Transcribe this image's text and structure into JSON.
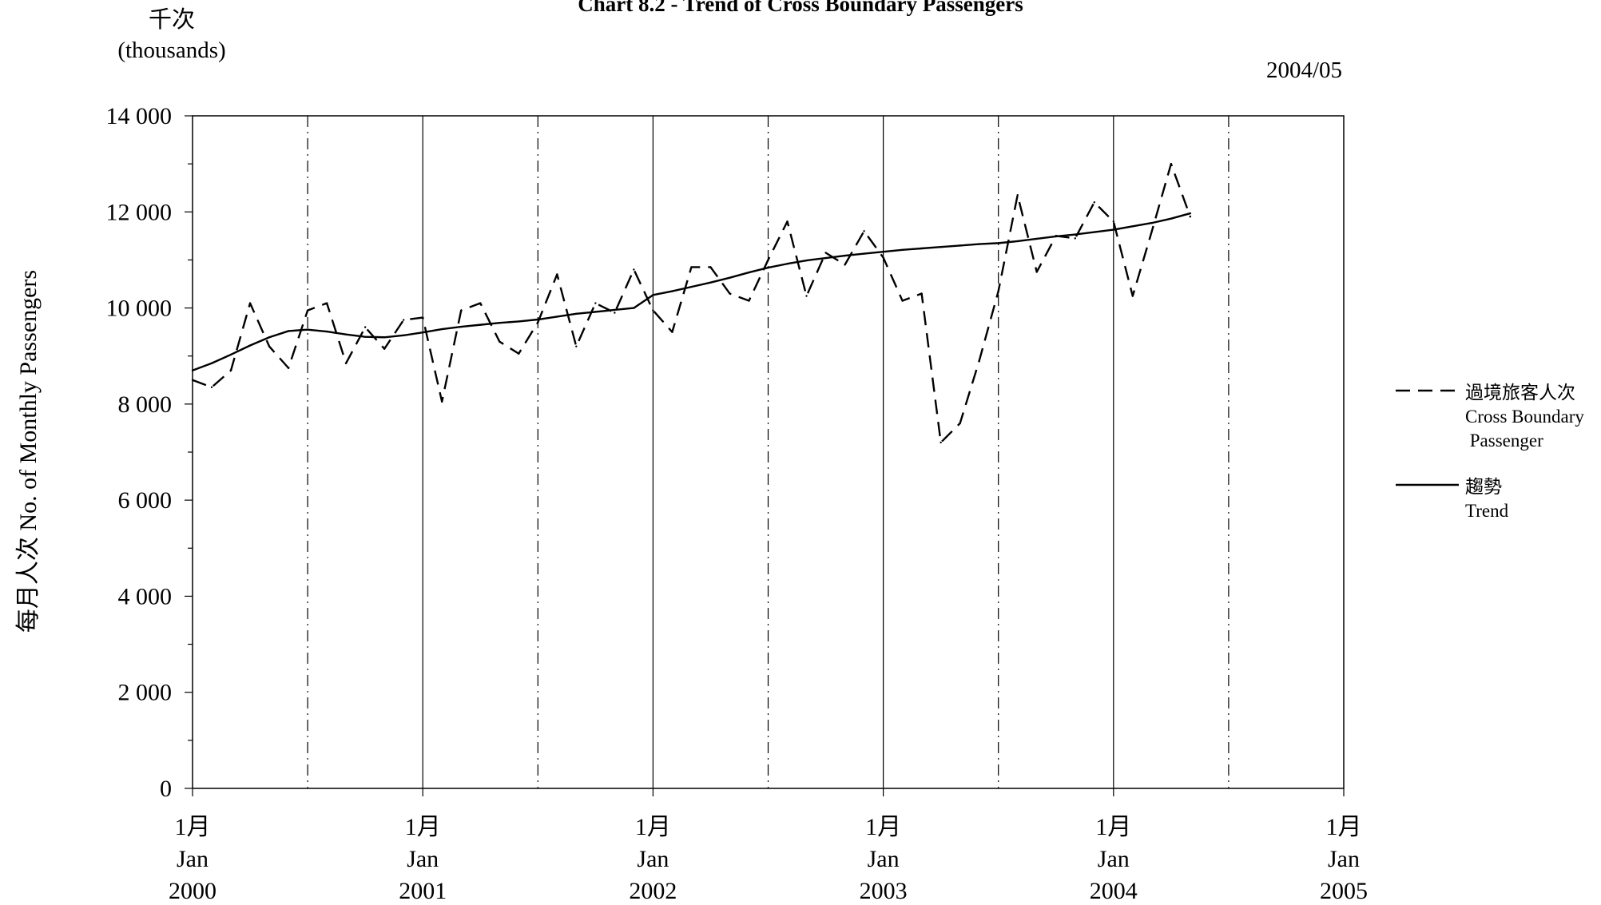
{
  "chart_data": {
    "type": "line",
    "title": "Chart 8.2 - Trend of Cross Boundary Passengers",
    "unit_zh": "千次",
    "unit_en": "(thousands)",
    "date_stamp": "2004/05",
    "ylabel": "每月人次  No. of Monthly Passengers",
    "ylim": [
      0,
      14000
    ],
    "yticks": [
      0,
      2000,
      4000,
      6000,
      8000,
      10000,
      12000,
      14000
    ],
    "ytick_labels": [
      "0",
      "2 000",
      "4 000",
      "6 000",
      "8 000",
      "10 000",
      "12 000",
      "14 000"
    ],
    "x_tick_labels": [
      {
        "zh": "1月",
        "en": "Jan",
        "year": "2000"
      },
      {
        "zh": "1月",
        "en": "Jan",
        "year": "2001"
      },
      {
        "zh": "1月",
        "en": "Jan",
        "year": "2002"
      },
      {
        "zh": "1月",
        "en": "Jan",
        "year": "2003"
      },
      {
        "zh": "1月",
        "en": "Jan",
        "year": "2004"
      },
      {
        "zh": "1月",
        "en": "Jan",
        "year": "2005"
      }
    ],
    "x_start": "2000-01",
    "x_end": "2005-01",
    "grid": "vertical lines at January (solid) and July (dash-dot)",
    "legend_position": "right",
    "x": [
      "2000-01",
      "2000-02",
      "2000-03",
      "2000-04",
      "2000-05",
      "2000-06",
      "2000-07",
      "2000-08",
      "2000-09",
      "2000-10",
      "2000-11",
      "2000-12",
      "2001-01",
      "2001-02",
      "2001-03",
      "2001-04",
      "2001-05",
      "2001-06",
      "2001-07",
      "2001-08",
      "2001-09",
      "2001-10",
      "2001-11",
      "2001-12",
      "2002-01",
      "2002-02",
      "2002-03",
      "2002-04",
      "2002-05",
      "2002-06",
      "2002-07",
      "2002-08",
      "2002-09",
      "2002-10",
      "2002-11",
      "2002-12",
      "2003-01",
      "2003-02",
      "2003-03",
      "2003-04",
      "2003-05",
      "2003-06",
      "2003-07",
      "2003-08",
      "2003-09",
      "2003-10",
      "2003-11",
      "2003-12",
      "2004-01",
      "2004-02",
      "2004-03",
      "2004-04",
      "2004-05"
    ],
    "series": [
      {
        "name": "過境旅客人次\nCross Boundary\n Passenger",
        "name_lines": [
          "過境旅客人次",
          "Cross Boundary",
          " Passenger"
        ],
        "style": "dashed",
        "color": "#000000",
        "values": [
          8500,
          8350,
          8700,
          10100,
          9200,
          8750,
          9950,
          10100,
          8850,
          9600,
          9150,
          9750,
          9800,
          8050,
          9950,
          10100,
          9300,
          9050,
          9700,
          10700,
          9200,
          10100,
          9900,
          10800,
          9950,
          9500,
          10850,
          10850,
          10300,
          10150,
          11000,
          11800,
          10250,
          11150,
          10900,
          11600,
          11050,
          10150,
          10300,
          7200,
          7600,
          8900,
          10350,
          12350,
          10750,
          11500,
          11450,
          12200,
          11800,
          10250,
          11600,
          13000,
          11900
        ]
      },
      {
        "name": "趨勢\nTrend",
        "name_lines": [
          "趨勢",
          "Trend"
        ],
        "style": "solid",
        "color": "#000000",
        "values": [
          8700,
          8850,
          9030,
          9220,
          9390,
          9520,
          9550,
          9510,
          9450,
          9400,
          9390,
          9430,
          9490,
          9560,
          9610,
          9650,
          9690,
          9720,
          9760,
          9820,
          9880,
          9920,
          9960,
          10000,
          10270,
          10350,
          10440,
          10530,
          10630,
          10740,
          10840,
          10920,
          10990,
          11040,
          11090,
          11130,
          11170,
          11210,
          11240,
          11270,
          11300,
          11330,
          11350,
          11390,
          11440,
          11490,
          11530,
          11580,
          11630,
          11700,
          11770,
          11860,
          11970
        ]
      }
    ]
  }
}
